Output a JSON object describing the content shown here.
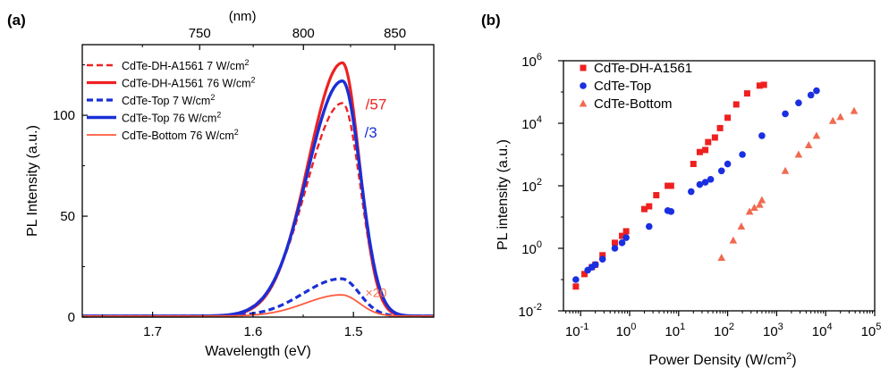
{
  "chart_data": [
    {
      "panel_label": "(a)",
      "type": "line",
      "xlabel": "Wavelength (eV)",
      "ylabel": "PL Intensity (a.u.)",
      "top_axis_label": "(nm)",
      "x_reversed": true,
      "xlim": [
        1.77,
        1.42
      ],
      "ylim": [
        0,
        135
      ],
      "x_ticks": [
        1.7,
        1.6,
        1.5
      ],
      "x_tick_labels": [
        "1.7",
        "1.6",
        "1.5"
      ],
      "y_ticks": [
        0,
        50,
        100
      ],
      "y_tick_labels": [
        "0",
        "50",
        "100"
      ],
      "top_ticks_nm": [
        750,
        800,
        850
      ],
      "top_tick_labels": [
        "750",
        "800",
        "850"
      ],
      "legend_position": "top-left",
      "series": [
        {
          "name": "CdTe-DH-A1561 7 W/cm²",
          "color": "#ee2222",
          "style": "dashed",
          "width": 2.4,
          "peak_x": 1.511,
          "peak_y": 106,
          "sigma_left": 0.036,
          "sigma_right": 0.018,
          "baseline": 0.5
        },
        {
          "name": "CdTe-DH-A1561 76 W/cm²",
          "color": "#ee2222",
          "style": "solid",
          "width": 3.2,
          "peak_x": 1.511,
          "peak_y": 126,
          "sigma_left": 0.034,
          "sigma_right": 0.017,
          "baseline": 0.5
        },
        {
          "name": "CdTe-Top 7 W/cm²",
          "color": "#1a2fd6",
          "style": "dashed",
          "width": 3.2,
          "peak_x": 1.512,
          "peak_y": 19,
          "sigma_left": 0.038,
          "sigma_right": 0.018,
          "baseline": 0.5
        },
        {
          "name": "CdTe-Top 76 W/cm²",
          "color": "#1a2fd6",
          "style": "solid",
          "width": 3.4,
          "peak_x": 1.511,
          "peak_y": 117,
          "sigma_left": 0.035,
          "sigma_right": 0.018,
          "baseline": 0.5
        },
        {
          "name": "CdTe-Bottom 76 W/cm²",
          "color": "#ff5a3c",
          "style": "solid",
          "width": 1.8,
          "peak_x": 1.512,
          "peak_y": 11,
          "sigma_left": 0.036,
          "sigma_right": 0.018,
          "baseline": 0.5
        }
      ],
      "annotations": [
        {
          "text": "/57",
          "x": 1.488,
          "y": 103,
          "color": "#ee2222"
        },
        {
          "text": "/3",
          "x": 1.489,
          "y": 89,
          "color": "#1a2fd6"
        },
        {
          "text": "×20",
          "x": 1.488,
          "y": 10,
          "color": "#f07050"
        }
      ]
    },
    {
      "panel_label": "(b)",
      "type": "scatter",
      "xlabel": "Power Density",
      "xlabel_unit": "(W/cm²)",
      "ylabel": "PL intensity (a.u.)",
      "x_scale": "log",
      "y_scale": "log",
      "xlim_exp": [
        -1.35,
        5
      ],
      "ylim_exp": [
        -2,
        6
      ],
      "x_ticks_exp": [
        -1,
        0,
        1,
        2,
        3,
        4,
        5
      ],
      "x_tick_labels": [
        "10",
        "10",
        "10",
        "10",
        "10",
        "10",
        "10"
      ],
      "x_tick_sups": [
        "-1",
        "0",
        "1",
        "2",
        "3",
        "4",
        "5"
      ],
      "y_ticks_exp": [
        -2,
        0,
        2,
        4,
        6
      ],
      "y_tick_labels": [
        "10",
        "10",
        "10",
        "10",
        "10"
      ],
      "y_tick_sups": [
        "-2",
        "0",
        "2",
        "4",
        "6"
      ],
      "legend_position": "top-left",
      "series": [
        {
          "name": "CdTe-DH-A1561",
          "marker": "square",
          "color": "#ee2020",
          "x": [
            0.08,
            0.12,
            0.17,
            0.2,
            0.28,
            0.5,
            0.7,
            0.85,
            2.0,
            2.5,
            3.5,
            6.0,
            7.0,
            20,
            27,
            35,
            40,
            55,
            70,
            100,
            150,
            250,
            450,
            550
          ],
          "y": [
            0.06,
            0.15,
            0.25,
            0.3,
            0.6,
            1.5,
            2.5,
            3.5,
            18,
            22,
            50,
            100,
            100,
            500,
            1200,
            1400,
            2500,
            3500,
            7000,
            15000,
            40000,
            90000,
            160000,
            170000
          ]
        },
        {
          "name": "CdTe-Top",
          "marker": "circle",
          "color": "#1a2fe0",
          "x": [
            0.08,
            0.14,
            0.17,
            0.2,
            0.28,
            0.5,
            0.7,
            0.85,
            2.5,
            6.0,
            7.0,
            18,
            27,
            35,
            45,
            75,
            100,
            200,
            500,
            1500,
            2800,
            5000,
            6500
          ],
          "y": [
            0.1,
            0.2,
            0.25,
            0.3,
            0.45,
            1.0,
            1.5,
            2.2,
            5.0,
            16,
            15,
            65,
            110,
            130,
            160,
            300,
            500,
            1000,
            4000,
            20000,
            45000,
            80000,
            110000
          ]
        },
        {
          "name": "CdTe-Bottom",
          "marker": "triangle",
          "color": "#f06a50",
          "x": [
            75,
            130,
            190,
            280,
            350,
            450,
            500,
            1500,
            2800,
            4500,
            6500,
            14000,
            20000,
            38000
          ],
          "y": [
            0.5,
            1.8,
            5.0,
            15,
            20,
            25,
            35,
            300,
            1000,
            2000,
            4000,
            12000,
            16000,
            25000
          ]
        }
      ]
    }
  ]
}
